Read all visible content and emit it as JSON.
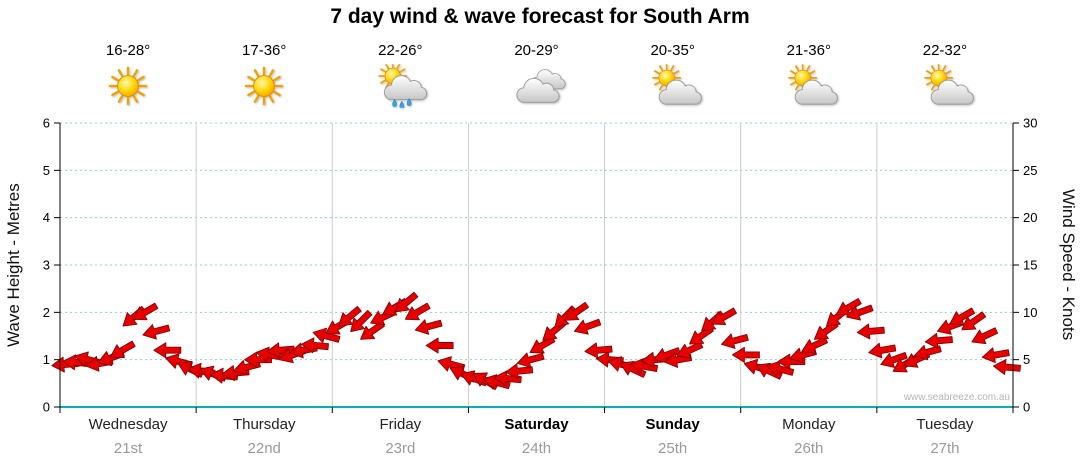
{
  "title": "7 day wind & wave forecast for South Arm",
  "watermark": "www.seabreeze.com.au",
  "days": [
    {
      "name": "Wednesday",
      "date": "21st",
      "temp": "16-28°",
      "icon": "sunny",
      "bold": false
    },
    {
      "name": "Thursday",
      "date": "22nd",
      "temp": "17-36°",
      "icon": "sunny",
      "bold": false
    },
    {
      "name": "Friday",
      "date": "23rd",
      "temp": "22-26°",
      "icon": "sun-showers",
      "bold": false
    },
    {
      "name": "Saturday",
      "date": "24th",
      "temp": "20-29°",
      "icon": "cloudy",
      "bold": true
    },
    {
      "name": "Sunday",
      "date": "25th",
      "temp": "20-35°",
      "icon": "partly-cloudy",
      "bold": true
    },
    {
      "name": "Monday",
      "date": "26th",
      "temp": "21-36°",
      "icon": "partly-cloudy",
      "bold": false
    },
    {
      "name": "Tuesday",
      "date": "27th",
      "temp": "22-32°",
      "icon": "partly-cloudy",
      "bold": false
    }
  ],
  "chart_data": {
    "type": "scatter",
    "marker": "wind-direction-arrow",
    "title": "7 day wind & wave forecast for South Arm",
    "left_axis_label": "Wave Height - Metres",
    "right_axis_label": "Wind Speed - Knots",
    "y_left_range": [
      0,
      6
    ],
    "y_right_range": [
      0,
      30
    ],
    "left_ticks": [
      0,
      1,
      2,
      3,
      4,
      5,
      6
    ],
    "right_ticks": [
      0,
      5,
      10,
      15,
      20,
      25,
      30
    ],
    "axis_alignment": "1 metre = 5 knots",
    "grid": "horizontal-dotted",
    "legend": "none",
    "categories": [
      "Wednesday 21st",
      "Thursday 22nd",
      "Friday 23rd",
      "Saturday 24th",
      "Sunday 25th",
      "Monday 26th",
      "Tuesday 27th"
    ],
    "samples_per_day": 12,
    "wind_speed_knots": [
      4.5,
      4.7,
      5.0,
      4.6,
      5.2,
      6.0,
      9.5,
      10.0,
      8.0,
      6.0,
      4.8,
      4.0,
      3.8,
      3.5,
      3.3,
      3.6,
      4.2,
      5.0,
      5.5,
      6.0,
      5.5,
      6.0,
      6.5,
      7.5,
      8.5,
      9.5,
      9.0,
      8.0,
      9.5,
      10.5,
      11.0,
      10.0,
      8.5,
      6.5,
      4.5,
      3.5,
      3.0,
      2.8,
      2.6,
      3.0,
      3.8,
      5.0,
      6.5,
      8.0,
      9.5,
      10.0,
      8.5,
      6.0,
      5.0,
      4.5,
      4.0,
      4.3,
      5.0,
      5.5,
      5.0,
      6.0,
      7.5,
      9.0,
      9.5,
      7.0,
      5.5,
      4.2,
      3.8,
      4.0,
      4.8,
      5.5,
      6.5,
      8.0,
      9.5,
      10.5,
      10.0,
      8.0,
      6.0,
      5.0,
      4.5,
      5.0,
      5.8,
      7.0,
      8.5,
      9.5,
      9.0,
      7.5,
      5.5,
      4.2
    ],
    "wind_arrow_angle_deg": [
      175,
      185,
      195,
      170,
      160,
      150,
      140,
      150,
      165,
      180,
      195,
      205,
      190,
      200,
      185,
      175,
      165,
      180,
      190,
      175,
      160,
      170,
      185,
      195,
      150,
      140,
      135,
      145,
      155,
      150,
      140,
      150,
      165,
      180,
      195,
      205,
      200,
      210,
      195,
      185,
      175,
      165,
      150,
      140,
      135,
      145,
      160,
      175,
      185,
      195,
      205,
      190,
      175,
      160,
      170,
      155,
      145,
      140,
      150,
      165,
      180,
      195,
      205,
      195,
      180,
      165,
      155,
      145,
      140,
      150,
      160,
      175,
      170,
      160,
      150,
      155,
      165,
      175,
      160,
      150,
      145,
      155,
      170,
      185
    ]
  },
  "colors": {
    "arrow": "#e60000",
    "arrow_outline": "#8a0000",
    "baseline": "#00b2b2",
    "gridline": "#8fd0d0",
    "day_separator": "#cccccc",
    "axis": "#000000",
    "date_text": "#9a9a9a",
    "watermark_text": "#b5b5b5",
    "sun": "#ffd400",
    "cloud": "#d9d9d9",
    "rain_drop": "#3da4e8"
  }
}
